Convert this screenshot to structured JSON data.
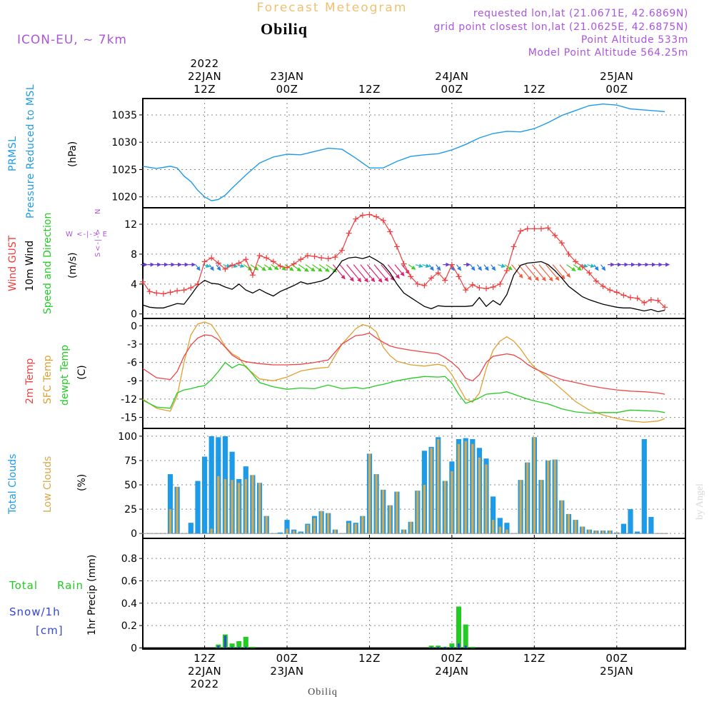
{
  "header": {
    "subtitle": "Forecast Meteogram",
    "location": "Obiliq",
    "model": "ICON-EU, ~ 7km",
    "requested": "requested lon,lat (21.0671E, 42.6869N)",
    "gridpoint": "grid point closest lon,lat (21.0625E, 42.6875N)",
    "point_alt": "Point Altitude 533m",
    "model_alt": "Model Point Altitude 564.25m",
    "footer": "Obiliq",
    "watermark": "by Angel",
    "year": "2022"
  },
  "colors": {
    "pressure": "#1e9be8",
    "gust": "#f03c3c",
    "wind": "#000000",
    "temp": "#ee4444",
    "sfc": "#e0a030",
    "dewpt": "#22cc22",
    "total_clouds": "#1e9be8",
    "low_clouds": "#d9a84a",
    "rain": "#22cc22",
    "snow": "#3344dd",
    "purple": "#aa55dd",
    "orange": "#f0c070"
  },
  "chart_data": {
    "type": "meteogram",
    "time_axis": {
      "unit": "hours since 2022-01-22 00Z",
      "range": [
        3,
        82
      ],
      "major_ticks": [
        {
          "h": 12,
          "top": [
            "2022",
            "22JAN",
            "12Z"
          ],
          "bottom": [
            "12Z",
            "22JAN",
            "2022"
          ]
        },
        {
          "h": 24,
          "top": [
            "23JAN",
            "00Z"
          ],
          "bottom": [
            "00Z",
            "23JAN"
          ]
        },
        {
          "h": 36,
          "top": [
            "12Z"
          ],
          "bottom": [
            "12Z"
          ]
        },
        {
          "h": 48,
          "top": [
            "24JAN",
            "00Z"
          ],
          "bottom": [
            "00Z",
            "24JAN"
          ]
        },
        {
          "h": 60,
          "top": [
            "12Z"
          ],
          "bottom": [
            "12Z"
          ]
        },
        {
          "h": 72,
          "top": [
            "25JAN",
            "00Z"
          ],
          "bottom": [
            "00Z",
            "25JAN"
          ]
        }
      ]
    },
    "pressure": {
      "labels": [
        "PRMSL",
        "Pressure Reduced to MSL",
        "(hPa)"
      ],
      "ylim": [
        1018,
        1038
      ],
      "yticks": [
        1020,
        1025,
        1030,
        1035
      ],
      "x": [
        3,
        5,
        7,
        8,
        9,
        10,
        11,
        12,
        13,
        14,
        15,
        16,
        18,
        20,
        22,
        24,
        26,
        28,
        30,
        32,
        34,
        36,
        38,
        40,
        42,
        44,
        46,
        48,
        50,
        52,
        54,
        56,
        58,
        60,
        62,
        64,
        66,
        68,
        70,
        72,
        74,
        76,
        78,
        79
      ],
      "values": [
        1025.6,
        1025.2,
        1025.6,
        1025.3,
        1023.8,
        1022.8,
        1021.2,
        1020.0,
        1019.3,
        1019.5,
        1020.3,
        1021.6,
        1024.0,
        1026.2,
        1027.3,
        1027.8,
        1027.7,
        1028.3,
        1028.9,
        1028.7,
        1027.1,
        1025.3,
        1025.3,
        1026.5,
        1027.4,
        1027.7,
        1027.9,
        1028.6,
        1029.6,
        1030.8,
        1031.6,
        1032.0,
        1031.9,
        1032.5,
        1033.6,
        1034.9,
        1035.8,
        1036.7,
        1037.0,
        1036.8,
        1036.1,
        1035.9,
        1035.7,
        1035.6
      ]
    },
    "wind": {
      "labels": [
        "Wind GUST",
        "10m Wind",
        "Speed and Direction",
        "(m/s)"
      ],
      "ylim": [
        -0.6,
        14.2
      ],
      "yticks": [
        0,
        4,
        8,
        12
      ],
      "x": [
        3,
        4,
        5,
        6,
        7,
        8,
        9,
        10,
        11,
        12,
        13,
        14,
        15,
        16,
        17,
        18,
        19,
        20,
        21,
        22,
        23,
        24,
        25,
        26,
        27,
        28,
        29,
        30,
        31,
        32,
        33,
        34,
        35,
        36,
        37,
        38,
        39,
        40,
        41,
        42,
        43,
        44,
        45,
        46,
        47,
        48,
        49,
        50,
        51,
        52,
        53,
        54,
        55,
        56,
        57,
        58,
        59,
        60,
        61,
        62,
        63,
        64,
        65,
        66,
        67,
        68,
        69,
        70,
        71,
        72,
        73,
        74,
        75,
        76,
        77,
        78,
        79
      ],
      "gust": [
        4.3,
        3.0,
        2.8,
        2.7,
        2.9,
        3.1,
        3.2,
        3.5,
        4.0,
        7.0,
        7.5,
        6.8,
        6.0,
        6.5,
        6.8,
        7.3,
        5.2,
        7.8,
        7.5,
        7.0,
        6.4,
        6.2,
        6.7,
        7.3,
        7.8,
        7.7,
        7.5,
        7.4,
        7.6,
        8.5,
        10.8,
        12.7,
        13.2,
        13.3,
        13.0,
        12.5,
        11.0,
        9.0,
        6.7,
        5.0,
        4.0,
        3.8,
        4.8,
        5.5,
        4.5,
        6.6,
        5.0,
        3.2,
        3.9,
        3.5,
        3.4,
        3.6,
        4.0,
        5.8,
        9.0,
        11.1,
        11.4,
        11.4,
        11.4,
        11.5,
        10.5,
        9.5,
        8.0,
        7.0,
        6.3,
        5.5,
        4.4,
        3.7,
        3.2,
        2.9,
        2.5,
        2.2,
        2.1,
        1.5,
        1.9,
        1.8,
        0.9
      ],
      "speed": [
        1.2,
        0.9,
        0.8,
        0.8,
        1.1,
        1.4,
        1.3,
        2.5,
        3.8,
        4.5,
        4.1,
        4.0,
        3.6,
        3.3,
        4.0,
        3.2,
        2.8,
        3.3,
        2.8,
        2.4,
        3.0,
        3.4,
        3.8,
        4.3,
        4.0,
        4.2,
        4.4,
        4.8,
        5.8,
        7.1,
        7.5,
        7.6,
        7.4,
        7.7,
        7.2,
        6.6,
        5.5,
        4.0,
        2.8,
        2.2,
        1.6,
        1.0,
        0.7,
        1.1,
        1.0,
        1.0,
        1.0,
        1.0,
        1.1,
        2.2,
        1.0,
        1.8,
        1.2,
        2.6,
        5.2,
        6.5,
        6.8,
        6.9,
        7.0,
        6.6,
        5.8,
        4.8,
        3.7,
        3.0,
        2.3,
        1.9,
        1.6,
        1.3,
        1.1,
        0.9,
        0.8,
        0.8,
        0.6,
        0.4,
        0.6,
        0.3,
        0.5
      ],
      "arrow_dirs": [
        5,
        5,
        5,
        5,
        5,
        5,
        5,
        5,
        4,
        3,
        4,
        4,
        3,
        3,
        3,
        2,
        2,
        2,
        2,
        2,
        2,
        2,
        2,
        2,
        2,
        2,
        2,
        2,
        1,
        1,
        1,
        1,
        1,
        1,
        1,
        1,
        1,
        1,
        1,
        2,
        3,
        3,
        4,
        4,
        5,
        4,
        4,
        5,
        4,
        4,
        4,
        4,
        3,
        2,
        1,
        1,
        1,
        1,
        1,
        1,
        1,
        1,
        2,
        2,
        3,
        3,
        4,
        4,
        5,
        5,
        5,
        5,
        5,
        5,
        5,
        5,
        5
      ],
      "arrow_level": 6.5,
      "compass": {
        "n": "N",
        "s": "S",
        "w": "W",
        "e": "E",
        "row": "W <-|-> E"
      }
    },
    "temperature": {
      "labels": [
        "2m Temp",
        "SFC Temp",
        "dewpt Temp",
        "(C)"
      ],
      "ylim": [
        -16.8,
        1.2
      ],
      "yticks": [
        0,
        -3,
        -6,
        -9,
        -12,
        -15
      ],
      "x": [
        3,
        5,
        7,
        8,
        9,
        10,
        11,
        12,
        13,
        14,
        15,
        16,
        17,
        18,
        20,
        22,
        24,
        26,
        28,
        30,
        32,
        34,
        35,
        36,
        37,
        38,
        39,
        40,
        42,
        44,
        46,
        47,
        48,
        49,
        50,
        51,
        52,
        53,
        54,
        55,
        56,
        57,
        58,
        59,
        60,
        62,
        64,
        66,
        68,
        70,
        72,
        74,
        76,
        78,
        79
      ],
      "t2m": [
        -7.0,
        -8.5,
        -8.8,
        -7.5,
        -5.0,
        -3.2,
        -2.0,
        -1.5,
        -1.6,
        -2.3,
        -3.5,
        -4.8,
        -5.5,
        -5.9,
        -6.2,
        -6.4,
        -6.4,
        -6.3,
        -6.0,
        -5.6,
        -3.0,
        -1.6,
        -1.5,
        -1.2,
        -2.0,
        -2.7,
        -3.3,
        -3.6,
        -4.0,
        -4.3,
        -4.6,
        -5.2,
        -6.0,
        -7.0,
        -8.6,
        -9.0,
        -8.0,
        -6.0,
        -5.0,
        -4.8,
        -4.6,
        -4.8,
        -5.4,
        -6.3,
        -7.0,
        -8.0,
        -8.8,
        -9.3,
        -9.8,
        -10.2,
        -10.5,
        -10.7,
        -10.8,
        -11.0,
        -11.2
      ],
      "sfc": [
        -12.0,
        -13.5,
        -14.0,
        -11.5,
        -6.0,
        -1.5,
        0.3,
        0.6,
        0.2,
        -1.5,
        -3.4,
        -4.6,
        -5.2,
        -6.8,
        -8.7,
        -9.0,
        -8.4,
        -7.4,
        -7.0,
        -6.8,
        -3.0,
        -0.5,
        0.2,
        -0.1,
        -1.0,
        -3.5,
        -4.9,
        -5.8,
        -6.4,
        -6.6,
        -6.3,
        -6.6,
        -8.0,
        -10.0,
        -12.0,
        -12.5,
        -11.0,
        -7.0,
        -4.0,
        -2.5,
        -1.8,
        -2.5,
        -3.8,
        -5.4,
        -6.8,
        -8.5,
        -10.4,
        -12.4,
        -13.8,
        -14.6,
        -15.2,
        -15.6,
        -15.8,
        -15.6,
        -15.2
      ],
      "dewpt": [
        -12.2,
        -13.3,
        -13.5,
        -11.0,
        -10.5,
        -10.3,
        -10.0,
        -9.8,
        -8.8,
        -7.5,
        -6.0,
        -6.9,
        -6.3,
        -6.6,
        -9.3,
        -10.0,
        -10.4,
        -10.2,
        -10.3,
        -9.7,
        -10.3,
        -10.1,
        -10.3,
        -10.1,
        -9.8,
        -9.6,
        -9.3,
        -9.0,
        -8.6,
        -8.3,
        -8.4,
        -8.3,
        -9.4,
        -11.2,
        -12.7,
        -12.3,
        -11.8,
        -11.2,
        -11.1,
        -11.0,
        -10.8,
        -11.2,
        -11.6,
        -12.0,
        -12.3,
        -12.8,
        -13.6,
        -14.1,
        -14.3,
        -14.2,
        -14.2,
        -13.8,
        -13.9,
        -14.0,
        -14.2
      ]
    },
    "clouds": {
      "labels": [
        "Total Clouds",
        "Low Clouds",
        "(%)"
      ],
      "ylim": [
        -5,
        108
      ],
      "yticks": [
        0,
        25,
        50,
        75,
        100
      ],
      "x": [
        3,
        4,
        5,
        6,
        7,
        8,
        9,
        10,
        11,
        12,
        13,
        14,
        15,
        16,
        17,
        18,
        19,
        20,
        21,
        22,
        23,
        24,
        25,
        26,
        27,
        28,
        29,
        30,
        31,
        32,
        33,
        34,
        35,
        36,
        37,
        38,
        39,
        40,
        41,
        42,
        43,
        44,
        45,
        46,
        47,
        48,
        49,
        50,
        51,
        52,
        53,
        54,
        55,
        56,
        57,
        58,
        59,
        60,
        61,
        62,
        63,
        64,
        65,
        66,
        67,
        68,
        69,
        70,
        71,
        72,
        73,
        74,
        75,
        76,
        77,
        78,
        79
      ],
      "total": [
        0,
        0,
        0,
        0,
        61,
        48,
        0,
        11,
        54,
        79,
        100,
        99,
        100,
        84,
        56,
        69,
        60,
        52,
        18,
        0,
        1,
        14,
        4,
        2,
        10,
        18,
        23,
        21,
        4,
        0,
        13,
        11,
        18,
        82,
        61,
        45,
        29,
        43,
        4,
        12,
        44,
        85,
        89,
        99,
        54,
        74,
        97,
        98,
        97,
        88,
        77,
        38,
        16,
        11,
        0,
        55,
        73,
        99,
        55,
        75,
        76,
        34,
        20,
        14,
        7,
        4,
        3,
        3,
        3,
        1,
        10,
        25,
        2,
        97,
        17,
        0,
        0
      ],
      "low": [
        0,
        0,
        0,
        0,
        25,
        48,
        0,
        0,
        0,
        0,
        5,
        59,
        56,
        55,
        52,
        56,
        60,
        52,
        18,
        0,
        0,
        5,
        3,
        1,
        9,
        16,
        23,
        21,
        4,
        0,
        11,
        10,
        18,
        82,
        61,
        45,
        29,
        43,
        4,
        12,
        44,
        50,
        88,
        97,
        54,
        64,
        92,
        95,
        92,
        78,
        71,
        14,
        7,
        4,
        0,
        55,
        73,
        99,
        55,
        75,
        76,
        34,
        20,
        14,
        7,
        4,
        3,
        3,
        3,
        1,
        0,
        0,
        0,
        0,
        0,
        0,
        0
      ]
    },
    "precip": {
      "labels": [
        "Total",
        "Rain",
        "Snow/1h",
        "[cm]",
        "1hr Precip (mm)"
      ],
      "ylim": [
        -0.01,
        0.98
      ],
      "yticks": [
        0,
        0.2,
        0.4,
        0.6,
        0.8
      ],
      "bars": [
        {
          "h": 14,
          "rain": 0.03,
          "snow": 0.02
        },
        {
          "h": 15,
          "rain": 0.12,
          "snow": 0.11
        },
        {
          "h": 16,
          "rain": 0.04,
          "snow": 0.01
        },
        {
          "h": 17,
          "rain": 0.06,
          "snow": 0.01
        },
        {
          "h": 18,
          "rain": 0.1,
          "snow": 0.01
        },
        {
          "h": 19,
          "rain": 0.01,
          "snow": 0.0
        },
        {
          "h": 45,
          "rain": 0.02,
          "snow": 0.01
        },
        {
          "h": 46,
          "rain": 0.02,
          "snow": 0.01
        },
        {
          "h": 47,
          "rain": 0.01,
          "snow": 0.01
        },
        {
          "h": 48,
          "rain": 0.04,
          "snow": 0.01
        },
        {
          "h": 49,
          "rain": 0.37,
          "snow": 0.04
        },
        {
          "h": 50,
          "rain": 0.21,
          "snow": 0.02
        },
        {
          "h": 51,
          "rain": 0.01,
          "snow": 0.0
        }
      ]
    }
  }
}
